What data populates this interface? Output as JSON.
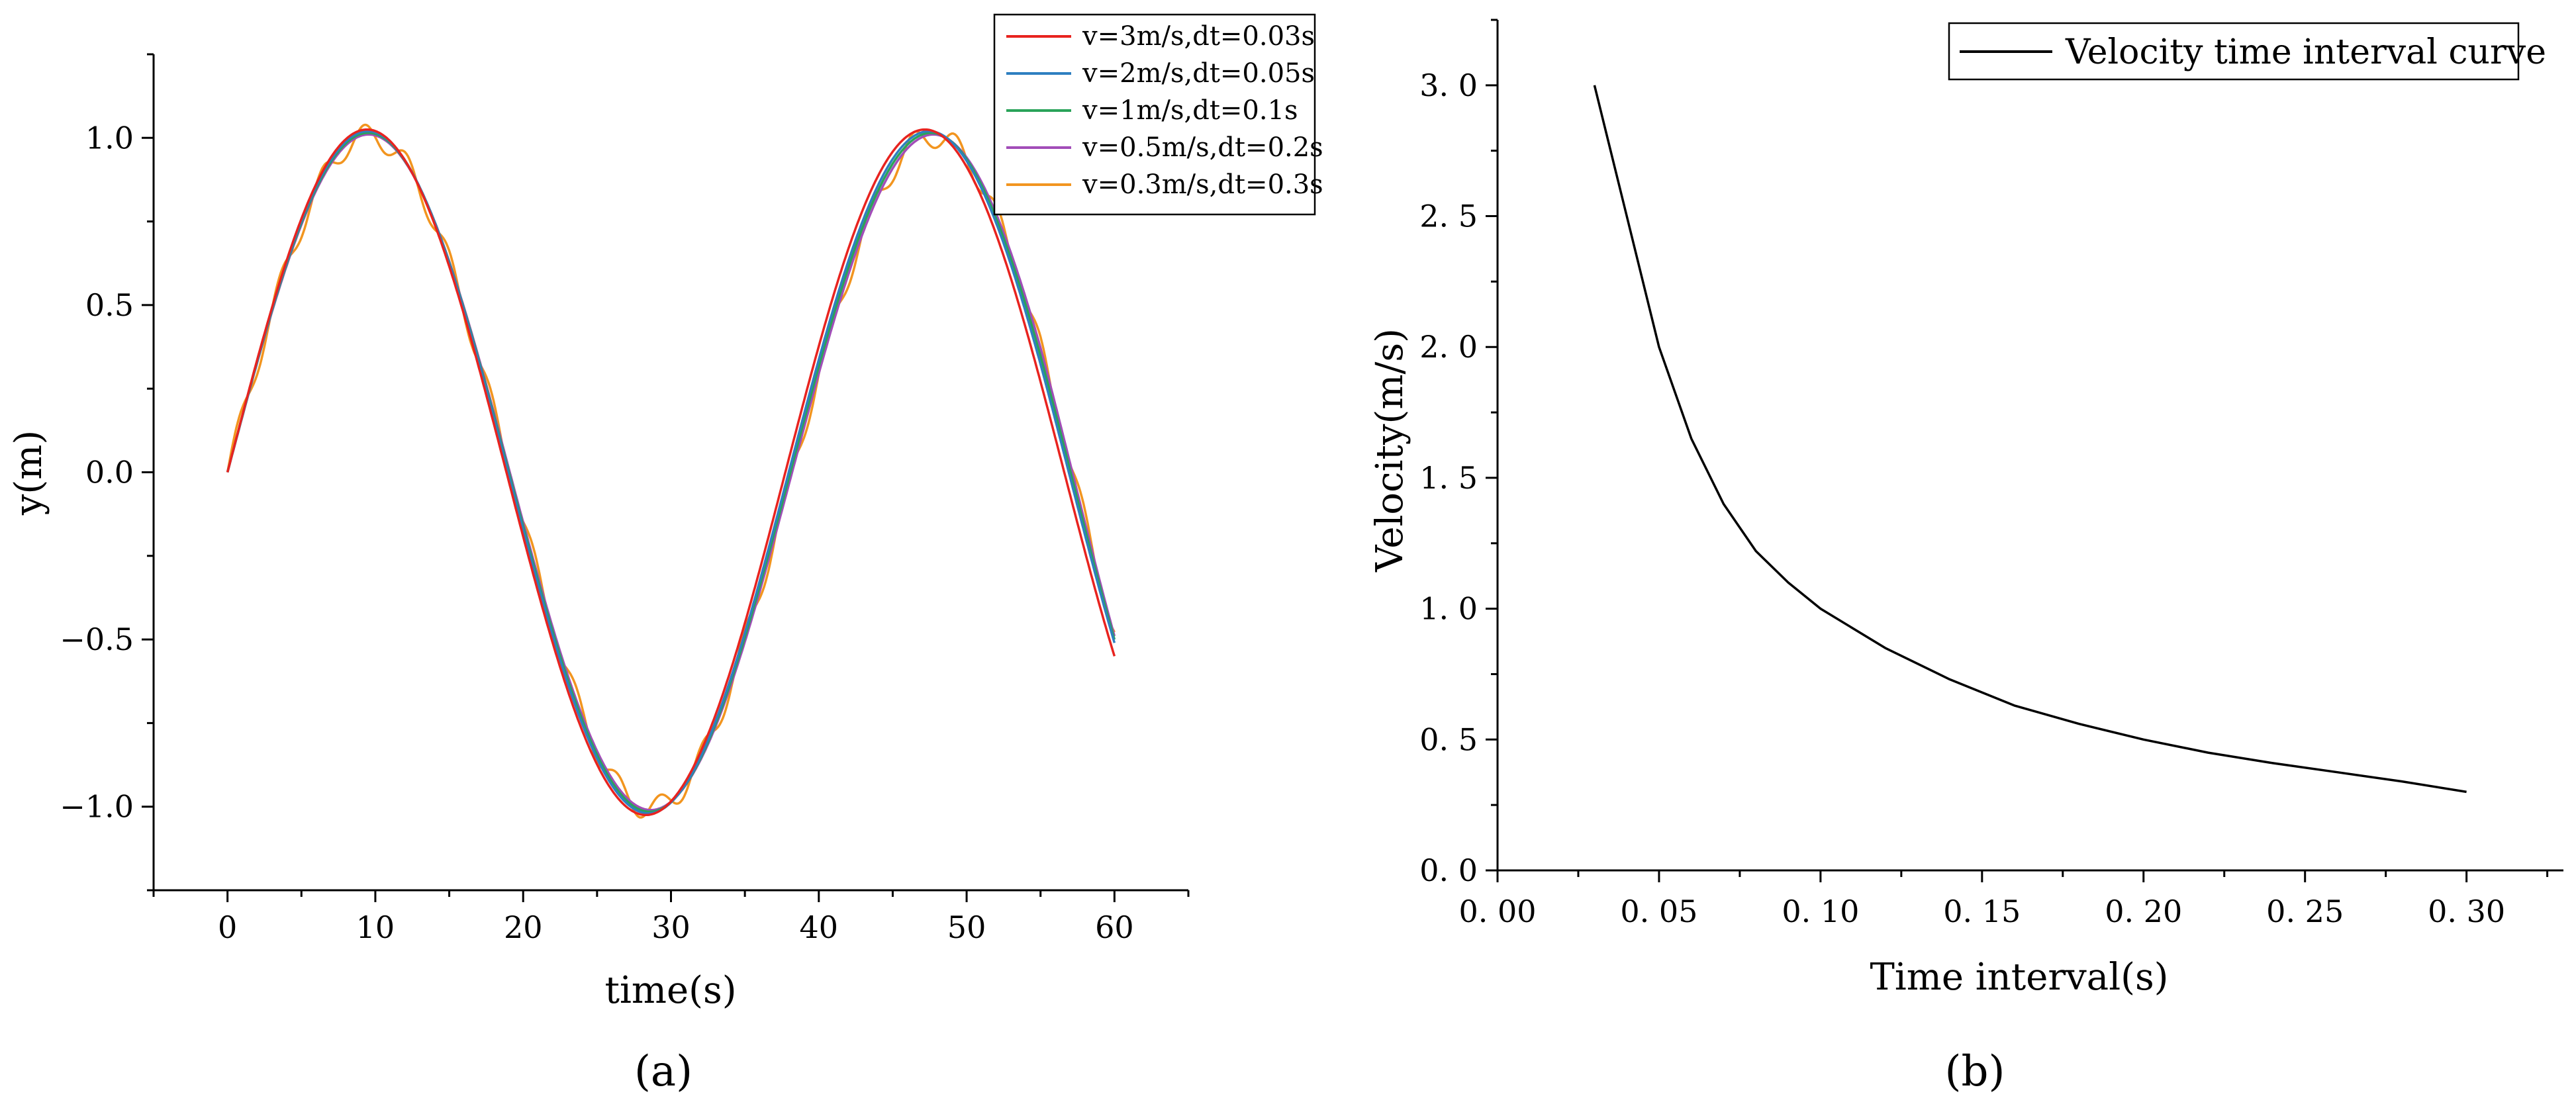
{
  "panels": {
    "a_label_prefix": "(",
    "a_label_letter": "a",
    "a_label_suffix": ")",
    "b_label_prefix": "(",
    "b_label_letter": "b",
    "b_label_suffix": ")"
  },
  "chart_data": [
    {
      "id": "a",
      "type": "line",
      "title": "",
      "xlabel": "time(s)",
      "ylabel": "y(m)",
      "xlim": [
        -5,
        65
      ],
      "ylim": [
        -1.25,
        1.25
      ],
      "xticks": [
        0,
        10,
        20,
        30,
        40,
        50,
        60
      ],
      "xtick_labels": [
        "0",
        "10",
        "20",
        "30",
        "40",
        "50",
        "60"
      ],
      "yticks": [
        -1.0,
        -0.5,
        0.0,
        0.5,
        1.0
      ],
      "ytick_labels": [
        "−1.0",
        "−0.5",
        "0.0",
        "0.5",
        "1.0"
      ],
      "legend_position": "top-right",
      "series": [
        {
          "name": "v=3m/s,dt=0.03s",
          "color": "#e8231f",
          "amplitude": 1.025,
          "omega": 0.1665,
          "end": -0.55,
          "wiggle": 0.0
        },
        {
          "name": "v=2m/s,dt=0.05s",
          "color": "#2e7fc0",
          "amplitude": 1.02,
          "omega": 0.1655,
          "end": -0.51,
          "wiggle": 0.0
        },
        {
          "name": "v=1m/s,dt=0.1s",
          "color": "#2aa35a",
          "amplitude": 1.015,
          "omega": 0.165,
          "end": -0.5,
          "wiggle": 0.0
        },
        {
          "name": "v=0.5m/s,dt=0.2s",
          "color": "#a24db8",
          "amplitude": 1.01,
          "omega": 0.1645,
          "end": -0.49,
          "wiggle": 0.0
        },
        {
          "name": "v=0.3m/s,dt=0.3s",
          "color": "#f2951f",
          "amplitude": 1.005,
          "omega": 0.1645,
          "end": -0.48,
          "wiggle": 0.035
        }
      ]
    },
    {
      "id": "b",
      "type": "line",
      "title": "",
      "xlabel": "Time interval(s)",
      "ylabel": "Velocity(m/s)",
      "xlim": [
        0.0,
        0.33
      ],
      "ylim": [
        0.0,
        3.25
      ],
      "xticks": [
        0.0,
        0.05,
        0.1,
        0.15,
        0.2,
        0.25,
        0.3
      ],
      "xtick_labels": [
        "0. 00",
        "0. 05",
        "0. 10",
        "0. 15",
        "0. 20",
        "0. 25",
        "0. 30"
      ],
      "yticks": [
        0.0,
        0.5,
        1.0,
        1.5,
        2.0,
        2.5,
        3.0
      ],
      "ytick_labels": [
        "0. 0",
        "0. 5",
        "1. 0",
        "1. 5",
        "2. 0",
        "2. 5",
        "3. 0"
      ],
      "legend_position": "top-right",
      "series": [
        {
          "name": "Velocity time interval curve",
          "color": "#000000",
          "x": [
            0.03,
            0.04,
            0.05,
            0.06,
            0.07,
            0.08,
            0.09,
            0.1,
            0.12,
            0.14,
            0.16,
            0.18,
            0.2,
            0.22,
            0.24,
            0.26,
            0.28,
            0.3
          ],
          "y": [
            3.0,
            2.5,
            2.0,
            1.65,
            1.4,
            1.22,
            1.1,
            1.0,
            0.85,
            0.73,
            0.63,
            0.56,
            0.5,
            0.45,
            0.41,
            0.375,
            0.34,
            0.3
          ]
        }
      ]
    }
  ]
}
